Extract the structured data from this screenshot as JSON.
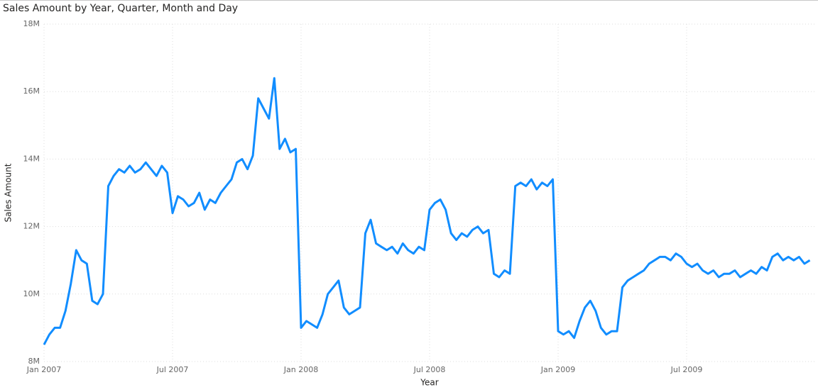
{
  "chart_data": {
    "type": "line",
    "title": "Sales Amount by Year, Quarter, Month and Day",
    "x_label": "Year",
    "y_label": "Sales Amount",
    "x": [
      "2007-01",
      "2007-02",
      "2007-03",
      "2007-04",
      "2007-05",
      "2007-06",
      "2007-07",
      "2007-08",
      "2007-09",
      "2007-10",
      "2007-11",
      "2007-12",
      "2008-01",
      "2008-02",
      "2008-03",
      "2008-04",
      "2008-05",
      "2008-06",
      "2008-07",
      "2008-08",
      "2008-09",
      "2008-10",
      "2008-11",
      "2008-12",
      "2009-01",
      "2009-02",
      "2009-03",
      "2009-04",
      "2009-05",
      "2009-06",
      "2009-07",
      "2009-08",
      "2009-09",
      "2009-10",
      "2009-11",
      "2009-12"
    ],
    "xlim": [
      "2007-01",
      "2009-12"
    ],
    "xticks": [
      {
        "value": "2007-01",
        "label": "Jan 2007"
      },
      {
        "value": "2007-07",
        "label": "Jul 2007"
      },
      {
        "value": "2008-01",
        "label": "Jan 2008"
      },
      {
        "value": "2008-07",
        "label": "Jul 2008"
      },
      {
        "value": "2009-01",
        "label": "Jan 2009"
      },
      {
        "value": "2009-07",
        "label": "Jul 2009"
      }
    ],
    "ylim": [
      8000000,
      18000000
    ],
    "yticks": [
      {
        "value": 8000000,
        "label": "8M"
      },
      {
        "value": 10000000,
        "label": "10M"
      },
      {
        "value": 12000000,
        "label": "12M"
      },
      {
        "value": 14000000,
        "label": "14M"
      },
      {
        "value": 16000000,
        "label": "16M"
      },
      {
        "value": 18000000,
        "label": "18M"
      }
    ],
    "grid": true,
    "series": [
      {
        "name": "Sales Amount",
        "color": "#118dff",
        "values": [
          [
            8500000,
            8800000,
            9000000,
            9000000
          ],
          [
            9500000,
            10300000,
            11300000,
            11000000
          ],
          [
            10900000,
            9800000,
            9700000,
            10000000
          ],
          [
            13200000,
            13500000,
            13700000,
            13600000
          ],
          [
            13800000,
            13600000,
            13700000,
            13900000
          ],
          [
            13700000,
            13500000,
            13800000,
            13600000
          ],
          [
            12400000,
            12900000,
            12800000,
            12600000
          ],
          [
            12700000,
            13000000,
            12500000,
            12800000
          ],
          [
            12700000,
            13000000,
            13200000,
            13400000
          ],
          [
            13900000,
            14000000,
            13700000,
            14100000
          ],
          [
            15800000,
            15500000,
            15200000,
            16400000
          ],
          [
            14300000,
            14600000,
            14200000,
            14300000
          ],
          [
            9000000,
            9200000,
            9100000,
            9000000
          ],
          [
            9400000,
            10000000,
            10200000,
            10400000
          ],
          [
            9600000,
            9400000,
            9500000,
            9600000
          ],
          [
            11800000,
            12200000,
            11500000,
            11400000
          ],
          [
            11300000,
            11400000,
            11200000,
            11500000
          ],
          [
            11300000,
            11200000,
            11400000,
            11300000
          ],
          [
            12500000,
            12700000,
            12800000,
            12500000
          ],
          [
            11800000,
            11600000,
            11800000,
            11700000
          ],
          [
            11900000,
            12000000,
            11800000,
            11900000
          ],
          [
            10600000,
            10500000,
            10700000,
            10600000
          ],
          [
            13200000,
            13300000,
            13200000,
            13400000
          ],
          [
            13100000,
            13300000,
            13200000,
            13400000
          ],
          [
            8900000,
            8800000,
            8900000,
            8700000
          ],
          [
            9200000,
            9600000,
            9800000,
            9500000
          ],
          [
            9000000,
            8800000,
            8900000,
            8900000
          ],
          [
            10200000,
            10400000,
            10500000,
            10600000
          ],
          [
            10700000,
            10900000,
            11000000,
            11100000
          ],
          [
            11100000,
            11000000,
            11200000,
            11100000
          ],
          [
            10900000,
            10800000,
            10900000,
            10700000
          ],
          [
            10600000,
            10700000,
            10500000,
            10600000
          ],
          [
            10600000,
            10700000,
            10500000,
            10600000
          ],
          [
            10700000,
            10600000,
            10800000,
            10700000
          ],
          [
            11100000,
            11200000,
            11000000,
            11100000
          ],
          [
            11000000,
            11100000,
            10900000,
            11000000
          ]
        ]
      }
    ]
  }
}
